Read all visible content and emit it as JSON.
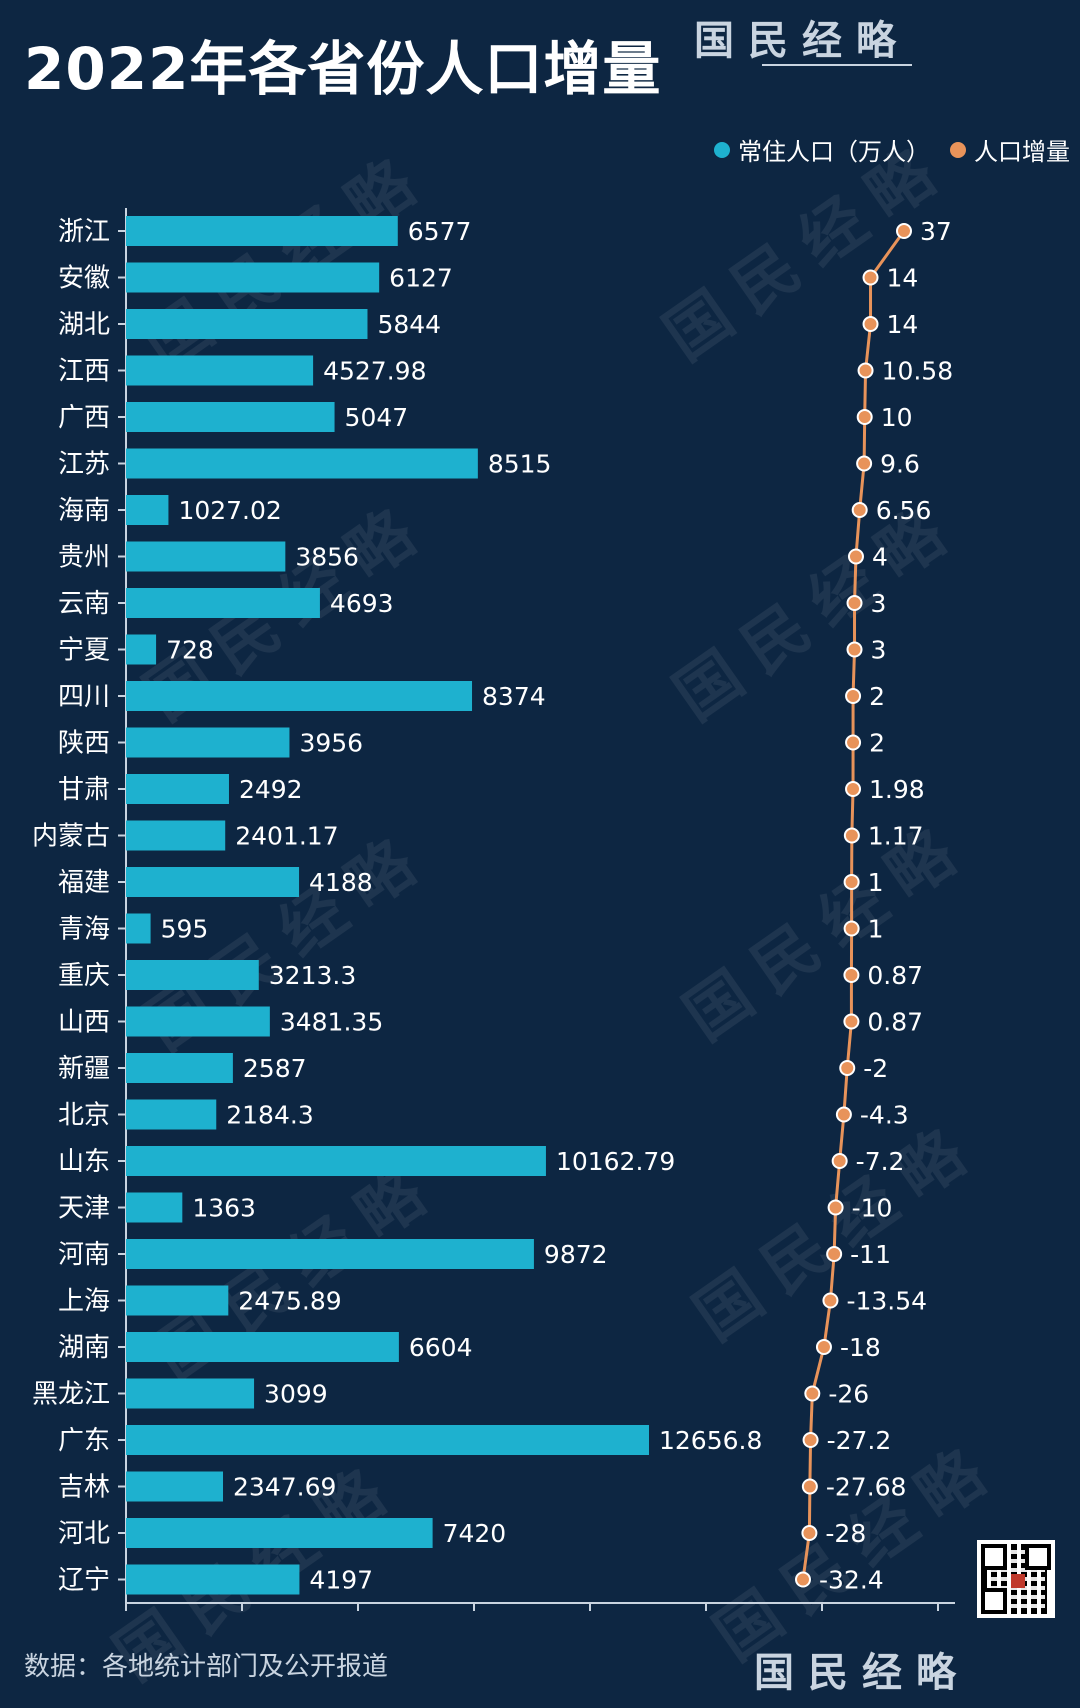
{
  "title": "2022年各省份人口增量",
  "brand": "国民经略",
  "source": "数据：各地统计部门及公开报道",
  "colors": {
    "background": "#0d2642",
    "bar": "#1eb1cf",
    "line": "#e8935a",
    "axis": "#c9d4e0"
  },
  "chart_data": {
    "type": "bar",
    "categories": [
      "浙江",
      "安徽",
      "湖北",
      "江西",
      "广西",
      "江苏",
      "海南",
      "贵州",
      "云南",
      "宁夏",
      "四川",
      "陕西",
      "甘肃",
      "内蒙古",
      "福建",
      "青海",
      "重庆",
      "山西",
      "新疆",
      "北京",
      "山东",
      "天津",
      "河南",
      "上海",
      "湖南",
      "黑龙江",
      "广东",
      "吉林",
      "河北",
      "辽宁"
    ],
    "series": [
      {
        "name": "常住人口（万人）",
        "type": "bar",
        "labels": [
          "6577",
          "6127",
          "5844",
          "4527.98",
          "5047",
          "8515",
          "1027.02",
          "3856",
          "4693",
          "728",
          "8374",
          "3956",
          "2492",
          "2401.17",
          "4188",
          "595",
          "3213.3",
          "3481.35",
          "2587",
          "2184.3",
          "10162.79",
          "1363",
          "9872",
          "2475.89",
          "6604",
          "3099",
          "12656.8",
          "2347.69",
          "7420",
          "4197"
        ],
        "values": [
          6577,
          6127,
          5844,
          4527.98,
          5047,
          8515,
          1027.02,
          3856,
          4693,
          728,
          8374,
          3956,
          2492,
          2401.17,
          4188,
          595,
          3213.3,
          3481.35,
          2587,
          2184.3,
          10162.79,
          1363,
          9872,
          2475.89,
          6604,
          3099,
          12656.8,
          2347.69,
          7420,
          4197
        ]
      },
      {
        "name": "人口增量",
        "type": "line",
        "labels": [
          "37",
          "14",
          "14",
          "10.58",
          "10",
          "9.6",
          "6.56",
          "4",
          "3",
          "3",
          "2",
          "2",
          "1.98",
          "1.17",
          "1",
          "1",
          "0.87",
          "0.87",
          "-2",
          "-4.3",
          "-7.2",
          "-10",
          "-11",
          "-13.54",
          "-18",
          "-26",
          "-27.2",
          "-27.68",
          "-28",
          "-32.4"
        ],
        "values": [
          37,
          14,
          14,
          10.58,
          10,
          9.6,
          6.56,
          4,
          3,
          3,
          2,
          2,
          1.98,
          1.17,
          1,
          1,
          0.87,
          0.87,
          -2,
          -4.3,
          -7.2,
          -10,
          -11,
          -13.54,
          -18,
          -26,
          -27.2,
          -27.68,
          -28,
          -32.4
        ]
      }
    ],
    "legend": "top-right",
    "grid": false
  }
}
